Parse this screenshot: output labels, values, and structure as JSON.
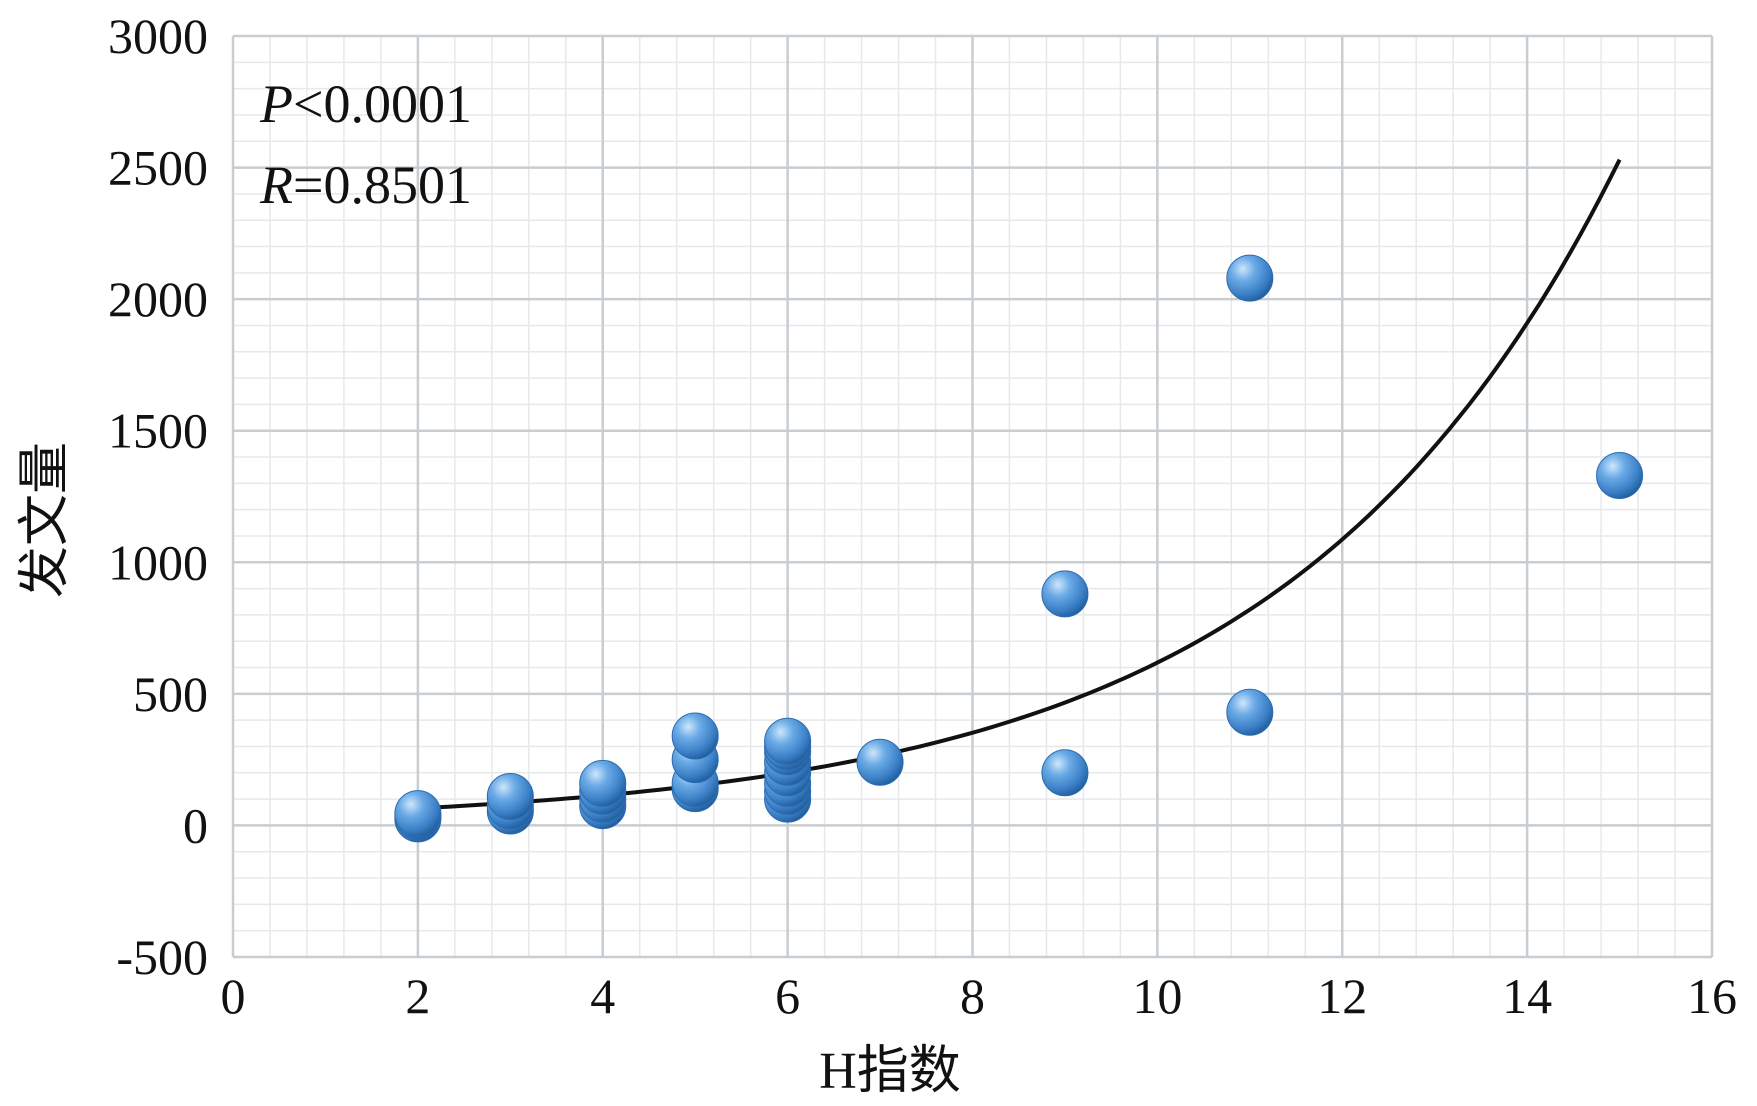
{
  "chart_data": {
    "type": "scatter",
    "title": "",
    "xlabel": "H指数",
    "ylabel": "发文量",
    "xlim": [
      0,
      16
    ],
    "ylim": [
      -500,
      3000
    ],
    "xticks": [
      0,
      2,
      4,
      6,
      8,
      10,
      12,
      14,
      16
    ],
    "yticks": [
      -500,
      0,
      500,
      1000,
      1500,
      2000,
      2500,
      3000
    ],
    "grid": true,
    "annotations": {
      "p_label": "P",
      "p_value": "<0.0001",
      "r_label": "R",
      "r_value": "=0.8501"
    },
    "points": [
      {
        "x": 2,
        "y": 25
      },
      {
        "x": 2,
        "y": 35
      },
      {
        "x": 2,
        "y": 45
      },
      {
        "x": 3,
        "y": 55
      },
      {
        "x": 3,
        "y": 75
      },
      {
        "x": 3,
        "y": 110
      },
      {
        "x": 4,
        "y": 75
      },
      {
        "x": 4,
        "y": 100
      },
      {
        "x": 4,
        "y": 130
      },
      {
        "x": 4,
        "y": 160
      },
      {
        "x": 5,
        "y": 140
      },
      {
        "x": 5,
        "y": 160
      },
      {
        "x": 5,
        "y": 250
      },
      {
        "x": 5,
        "y": 340
      },
      {
        "x": 6,
        "y": 100
      },
      {
        "x": 6,
        "y": 130
      },
      {
        "x": 6,
        "y": 160
      },
      {
        "x": 6,
        "y": 200
      },
      {
        "x": 6,
        "y": 240
      },
      {
        "x": 6,
        "y": 280
      },
      {
        "x": 6,
        "y": 300
      },
      {
        "x": 6,
        "y": 320
      },
      {
        "x": 7,
        "y": 240
      },
      {
        "x": 9,
        "y": 200
      },
      {
        "x": 9,
        "y": 880
      },
      {
        "x": 11,
        "y": 430
      },
      {
        "x": 11,
        "y": 2080
      },
      {
        "x": 15,
        "y": 1330
      }
    ],
    "trendline": {
      "type": "exponential",
      "x": [
        2,
        3,
        4,
        5,
        6,
        7,
        8,
        9,
        10,
        11,
        12,
        13,
        14,
        15
      ],
      "y": [
        65,
        85,
        110,
        145,
        190,
        250,
        330,
        440,
        580,
        770,
        1030,
        1380,
        1870,
        2530
      ]
    },
    "colors": {
      "point_fill": "#4a90d9",
      "point_stroke": "#2a6bb0",
      "trendline": "#111111",
      "grid_major": "#c8cdd2",
      "grid_minor": "#e6e8ea"
    }
  }
}
